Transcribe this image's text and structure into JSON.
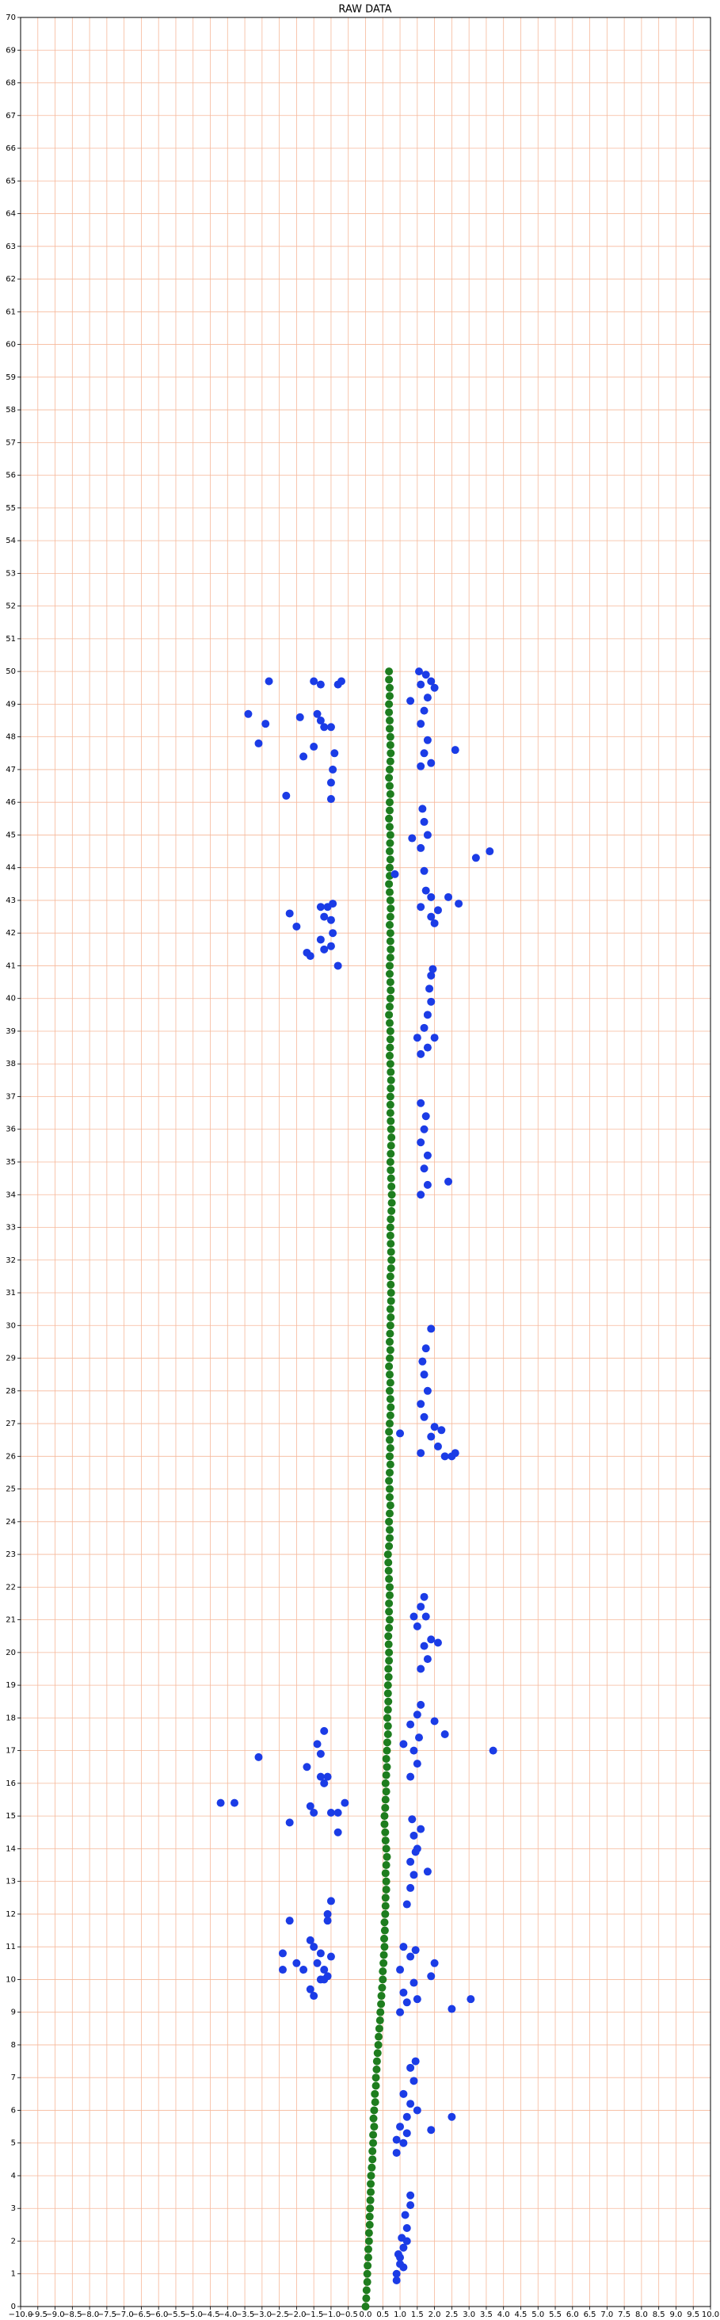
{
  "chart_data": {
    "type": "scatter",
    "title": "RAW DATA",
    "xlim": [
      -10,
      10
    ],
    "ylim": [
      0,
      70
    ],
    "xticks": [
      {
        "value": -10,
        "label": "−10.0"
      },
      {
        "value": -9.5,
        "label": "−9.5"
      },
      {
        "value": -9,
        "label": "−9.0"
      },
      {
        "value": -8.5,
        "label": "−8.5"
      },
      {
        "value": -8,
        "label": "−8.0"
      },
      {
        "value": -7.5,
        "label": "−7.5"
      },
      {
        "value": -7,
        "label": "−7.0"
      },
      {
        "value": -6.5,
        "label": "−6.5"
      },
      {
        "value": -6,
        "label": "−6.0"
      },
      {
        "value": -5.5,
        "label": "−5.5"
      },
      {
        "value": -5,
        "label": "−5.0"
      },
      {
        "value": -4.5,
        "label": "−4.5"
      },
      {
        "value": -4,
        "label": "−4.0"
      },
      {
        "value": -3.5,
        "label": "−3.5"
      },
      {
        "value": -3,
        "label": "−3.0"
      },
      {
        "value": -2.5,
        "label": "−2.5"
      },
      {
        "value": -2,
        "label": "−2.0"
      },
      {
        "value": -1.5,
        "label": "−1.5"
      },
      {
        "value": -1,
        "label": "−1.0"
      },
      {
        "value": -0.5,
        "label": "−0.5"
      },
      {
        "value": 0,
        "label": "0.0"
      },
      {
        "value": 0.5,
        "label": "0.5"
      },
      {
        "value": 1,
        "label": "1.0"
      },
      {
        "value": 1.5,
        "label": "1.5"
      },
      {
        "value": 2,
        "label": "2.0"
      },
      {
        "value": 2.5,
        "label": "2.5"
      },
      {
        "value": 3,
        "label": "3.0"
      },
      {
        "value": 3.5,
        "label": "3.5"
      },
      {
        "value": 4,
        "label": "4.0"
      },
      {
        "value": 4.5,
        "label": "4.5"
      },
      {
        "value": 5,
        "label": "5.0"
      },
      {
        "value": 5.5,
        "label": "5.5"
      },
      {
        "value": 6,
        "label": "6.0"
      },
      {
        "value": 6.5,
        "label": "6.5"
      },
      {
        "value": 7,
        "label": "7.0"
      },
      {
        "value": 7.5,
        "label": "7.5"
      },
      {
        "value": 8,
        "label": "8.0"
      },
      {
        "value": 8.5,
        "label": "8.5"
      },
      {
        "value": 9,
        "label": "9.0"
      },
      {
        "value": 9.5,
        "label": "9.5"
      },
      {
        "value": 10,
        "label": "10.0"
      }
    ],
    "yticks": [
      0,
      1,
      2,
      3,
      4,
      5,
      6,
      7,
      8,
      9,
      10,
      11,
      12,
      13,
      14,
      15,
      16,
      17,
      18,
      19,
      20,
      21,
      22,
      23,
      24,
      25,
      26,
      27,
      28,
      29,
      30,
      31,
      32,
      33,
      34,
      35,
      36,
      37,
      38,
      39,
      40,
      41,
      42,
      43,
      44,
      45,
      46,
      47,
      48,
      49,
      50,
      51,
      52,
      53,
      54,
      55,
      56,
      57,
      58,
      59,
      60,
      61,
      62,
      63,
      64,
      65,
      66,
      67,
      68,
      69,
      70
    ],
    "grid": true,
    "grid_color": "#f6b89a",
    "series": [
      {
        "color": "#1e7d1e",
        "x": [
          0.0,
          0.02,
          0.03,
          0.05,
          0.05,
          0.06,
          0.08,
          0.08,
          0.1,
          0.1,
          0.12,
          0.12,
          0.13,
          0.14,
          0.15,
          0.15,
          0.16,
          0.18,
          0.2,
          0.2,
          0.22,
          0.22,
          0.25,
          0.23,
          0.25,
          0.28,
          0.27,
          0.3,
          0.3,
          0.32,
          0.33,
          0.35,
          0.37,
          0.38,
          0.4,
          0.42,
          0.43,
          0.45,
          0.46,
          0.48,
          0.5,
          0.5,
          0.52,
          0.53,
          0.55,
          0.54,
          0.56,
          0.55,
          0.57,
          0.58,
          0.58,
          0.6,
          0.6,
          0.58,
          0.6,
          0.62,
          0.6,
          0.58,
          0.57,
          0.55,
          0.55,
          0.57,
          0.58,
          0.6,
          0.58,
          0.6,
          0.62,
          0.6,
          0.62,
          0.63,
          0.65,
          0.65,
          0.63,
          0.65,
          0.66,
          0.65,
          0.65,
          0.67,
          0.66,
          0.68,
          0.68,
          0.67,
          0.66,
          0.68,
          0.7,
          0.68,
          0.68,
          0.7,
          0.7,
          0.68,
          0.67,
          0.66,
          0.65,
          0.68,
          0.7,
          0.7,
          0.68,
          0.7,
          0.72,
          0.7,
          0.7,
          0.68,
          0.7,
          0.72,
          0.7,
          0.72,
          0.7,
          0.68,
          0.7,
          0.72,
          0.73,
          0.72,
          0.7,
          0.72,
          0.7,
          0.68,
          0.7,
          0.72,
          0.7,
          0.71,
          0.72,
          0.73,
          0.72,
          0.74,
          0.74,
          0.73,
          0.72,
          0.74,
          0.75,
          0.74,
          0.73,
          0.72,
          0.72,
          0.73,
          0.75,
          0.76,
          0.76,
          0.75,
          0.74,
          0.73,
          0.72,
          0.73,
          0.74,
          0.75,
          0.74,
          0.73,
          0.72,
          0.72,
          0.72,
          0.73,
          0.74,
          0.73,
          0.72,
          0.7,
          0.71,
          0.72,
          0.72,
          0.7,
          0.68,
          0.7,
          0.72,
          0.73,
          0.72,
          0.7,
          0.7,
          0.72,
          0.73,
          0.72,
          0.72,
          0.7,
          0.72,
          0.73,
          0.72,
          0.7,
          0.68,
          0.7,
          0.7,
          0.72,
          0.7,
          0.71,
          0.72,
          0.7,
          0.68,
          0.7,
          0.7,
          0.72,
          0.7,
          0.68,
          0.7,
          0.72,
          0.73,
          0.72,
          0.72,
          0.7,
          0.7,
          0.68,
          0.68,
          0.7,
          0.7,
          0.68,
          0.68
        ],
        "values": [
          0,
          0.25,
          0.5,
          0.75,
          1,
          1.25,
          1.5,
          1.75,
          2,
          2.25,
          2.5,
          2.75,
          3,
          3.25,
          3.5,
          3.75,
          4,
          4.25,
          4.5,
          4.75,
          5,
          5.25,
          5.5,
          5.75,
          6,
          6.25,
          6.5,
          6.75,
          7,
          7.25,
          7.5,
          7.75,
          8,
          8.25,
          8.5,
          8.75,
          9,
          9.25,
          9.5,
          9.75,
          10,
          10.25,
          10.5,
          10.75,
          11,
          11.25,
          11.5,
          11.75,
          12,
          12.25,
          12.5,
          12.75,
          13,
          13.25,
          13.5,
          13.75,
          14,
          14.25,
          14.5,
          14.75,
          15,
          15.25,
          15.5,
          15.75,
          16,
          16.25,
          16.5,
          16.75,
          17,
          17.25,
          17.5,
          17.75,
          18,
          18.25,
          18.5,
          18.75,
          19,
          19.25,
          19.5,
          19.75,
          20,
          20.25,
          20.5,
          20.75,
          21,
          21.25,
          21.5,
          21.75,
          22,
          22.25,
          22.5,
          22.75,
          23,
          23.25,
          23.5,
          23.75,
          24,
          24.25,
          24.5,
          24.75,
          25,
          25.25,
          25.5,
          25.75,
          26,
          26.25,
          26.5,
          26.75,
          27,
          27.25,
          27.5,
          27.75,
          28,
          28.25,
          28.5,
          28.75,
          29,
          29.25,
          29.5,
          29.75,
          30,
          30.25,
          30.5,
          30.75,
          31,
          31.25,
          31.5,
          31.75,
          32,
          32.25,
          32.5,
          32.75,
          33,
          33.25,
          33.5,
          33.75,
          34,
          34.25,
          34.5,
          34.75,
          35,
          35.25,
          35.5,
          35.75,
          36,
          36.25,
          36.5,
          36.75,
          37,
          37.25,
          37.5,
          37.75,
          38,
          38.25,
          38.5,
          38.75,
          39,
          39.25,
          39.5,
          39.75,
          40,
          40.25,
          40.5,
          40.75,
          41,
          41.25,
          41.5,
          41.75,
          42,
          42.25,
          42.5,
          42.75,
          43,
          43.25,
          43.5,
          43.75,
          44,
          44.25,
          44.5,
          44.75,
          45,
          45.25,
          45.5,
          45.75,
          46,
          46.25,
          46.5,
          46.75,
          47,
          47.25,
          47.5,
          47.75,
          48,
          48.25,
          48.5,
          48.75,
          49,
          49.25,
          49.5,
          49.75,
          50
        ]
      },
      {
        "color": "#1b3ce6",
        "x": [
          0.9,
          1.0,
          0.95,
          1.1,
          1.05,
          1.2,
          1.15,
          1.3,
          1.3,
          1.0,
          1.1,
          0.9,
          1.2,
          0.9,
          1.1,
          1.0,
          1.2,
          1.3,
          1.1,
          1.4,
          1.3,
          1.45,
          1.9,
          2.5,
          1.2,
          0.9,
          1.5,
          1.0,
          1.2,
          1.1,
          1.4,
          1.0,
          1.3,
          1.1,
          1.45,
          2.0,
          1.9,
          2.5,
          3.05,
          1.5,
          1.2,
          1.3,
          1.4,
          1.3,
          1.5,
          1.4,
          1.6,
          1.35,
          1.8,
          1.45,
          1.3,
          1.5,
          1.4,
          1.55,
          1.3,
          1.5,
          1.6,
          1.1,
          2.3,
          3.7,
          2.0,
          1.6,
          1.8,
          1.7,
          1.9,
          1.5,
          1.75,
          1.6,
          1.7,
          1.4,
          2.1,
          1.6,
          2.3,
          2.5,
          2.6,
          2.1,
          1.9,
          2.0,
          1.7,
          1.6,
          1.8,
          1.7,
          1.65,
          1.75,
          1.9,
          1.0,
          2.2,
          1.6,
          1.8,
          2.4,
          1.7,
          1.8,
          1.6,
          1.7,
          1.75,
          1.6,
          1.6,
          1.8,
          2.0,
          1.7,
          1.8,
          1.9,
          1.85,
          1.9,
          1.95,
          1.5,
          1.6,
          1.9,
          2.0,
          2.1,
          2.4,
          2.7,
          1.75,
          1.7,
          0.85,
          1.6,
          1.8,
          1.7,
          1.65,
          1.35,
          3.2,
          3.6,
          1.9,
          1.6,
          1.9,
          2.6,
          1.7,
          1.8,
          1.6,
          1.7,
          1.8,
          1.6,
          1.9,
          1.55,
          1.75,
          1.3,
          2.0,
          -1.3,
          -1.2,
          -0.8,
          -1.0,
          -0.95,
          -1.2,
          -1.0,
          -1.3,
          -1.1,
          -0.95,
          -2.2,
          -2.0,
          -1.7,
          -1.6,
          -2.3,
          -1.8,
          -1.5,
          -0.9,
          -0.95,
          -1.0,
          -1.0,
          -3.1,
          -2.9,
          -3.4,
          -1.9,
          -1.4,
          -1.2,
          -1.3,
          -1.0,
          -2.8,
          -1.5,
          -1.3,
          -0.8,
          -0.7,
          -1.2,
          -1.4,
          -1.3,
          -1.7,
          -1.3,
          -1.2,
          -1.1,
          -3.1,
          -1.6,
          -1.5,
          -1.0,
          -0.8,
          -0.6,
          -0.8,
          -2.2,
          -4.2,
          -3.8,
          -1.0,
          -1.1,
          -1.1,
          -2.2,
          -1.6,
          -1.5,
          -1.3,
          -1.0,
          -1.4,
          -1.2,
          -1.3,
          -1.1,
          -2.4,
          -2.4,
          -2.0,
          -1.8,
          -1.6,
          -1.5,
          -1.2
        ],
        "values": [
          1.0,
          1.3,
          1.6,
          1.8,
          2.1,
          2.4,
          2.8,
          3.1,
          3.4,
          1.5,
          1.2,
          0.8,
          2.0,
          4.7,
          5.0,
          5.5,
          5.8,
          6.2,
          6.5,
          6.9,
          7.3,
          7.5,
          5.4,
          5.8,
          5.3,
          5.1,
          6.0,
          9.0,
          9.3,
          9.6,
          9.9,
          10.3,
          10.7,
          11.0,
          10.9,
          10.5,
          10.1,
          9.1,
          9.4,
          9.4,
          12.3,
          12.8,
          13.2,
          13.6,
          14.0,
          14.4,
          14.6,
          14.9,
          13.3,
          13.9,
          16.2,
          16.6,
          17.0,
          17.4,
          17.8,
          18.1,
          18.4,
          17.2,
          17.5,
          17.0,
          17.9,
          19.5,
          19.8,
          20.2,
          20.4,
          20.8,
          21.1,
          21.4,
          21.7,
          21.1,
          20.3,
          26.1,
          26.0,
          26.0,
          26.1,
          26.3,
          26.6,
          26.9,
          27.2,
          27.6,
          28.0,
          28.5,
          28.9,
          29.3,
          29.9,
          26.7,
          26.8,
          34.0,
          34.3,
          34.4,
          34.8,
          35.2,
          35.6,
          36.0,
          36.4,
          36.8,
          38.3,
          38.5,
          38.8,
          39.1,
          39.5,
          39.9,
          40.3,
          40.7,
          40.9,
          38.8,
          42.8,
          42.5,
          42.3,
          42.7,
          43.1,
          42.9,
          43.3,
          43.9,
          43.8,
          44.6,
          45.0,
          45.4,
          45.8,
          44.9,
          44.3,
          44.5,
          43.1,
          47.1,
          47.2,
          47.6,
          47.5,
          47.9,
          48.4,
          48.8,
          49.2,
          49.6,
          49.7,
          50.0,
          49.9,
          49.1,
          49.5,
          41.8,
          41.5,
          41.0,
          41.6,
          42.0,
          42.5,
          42.4,
          42.8,
          42.8,
          42.9,
          42.6,
          42.2,
          41.4,
          41.3,
          46.2,
          47.4,
          47.7,
          47.5,
          47.0,
          46.6,
          46.1,
          47.8,
          48.4,
          48.7,
          48.6,
          48.7,
          48.3,
          48.5,
          48.3,
          49.7,
          49.7,
          49.6,
          49.6,
          49.7,
          17.6,
          17.2,
          16.9,
          16.5,
          16.2,
          16.0,
          16.2,
          16.8,
          15.3,
          15.1,
          15.1,
          15.1,
          15.4,
          14.5,
          14.8,
          15.4,
          15.4,
          12.4,
          12.0,
          11.8,
          11.8,
          11.2,
          11.0,
          10.8,
          10.7,
          10.5,
          10.3,
          10.0,
          10.1,
          10.8,
          10.3,
          10.5,
          10.3,
          9.7,
          9.5,
          10.0
        ]
      }
    ]
  }
}
